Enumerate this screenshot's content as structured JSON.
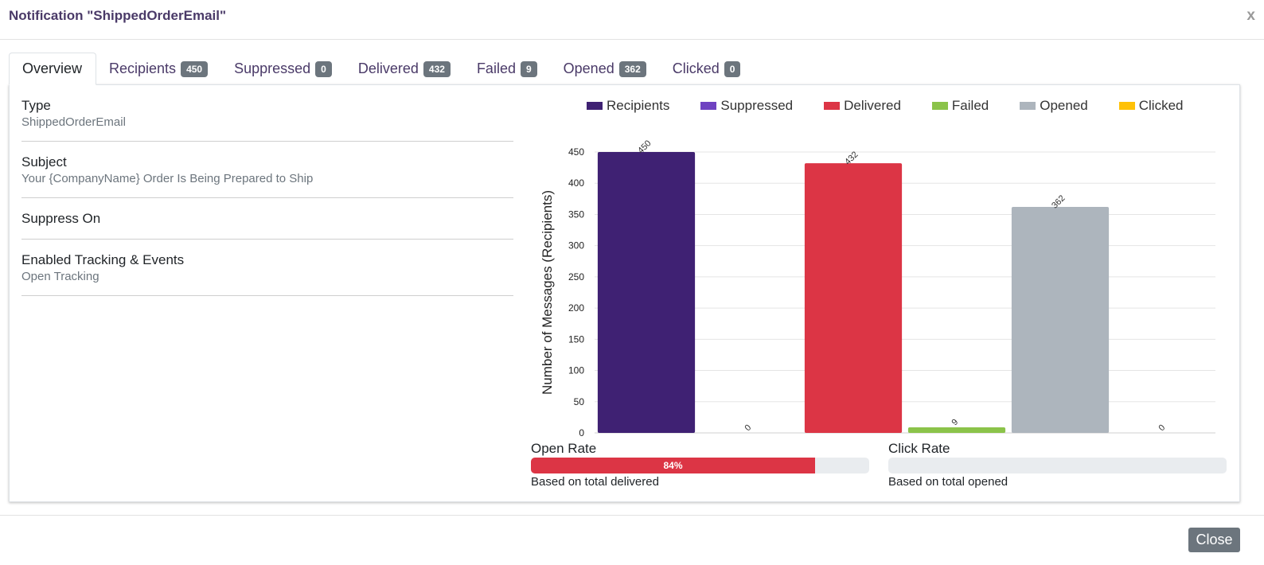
{
  "modal": {
    "title": "Notification \"ShippedOrderEmail\"",
    "close_icon": "x",
    "close_button": "Close"
  },
  "tabs": [
    {
      "label": "Overview",
      "badge": null
    },
    {
      "label": "Recipients",
      "badge": "450"
    },
    {
      "label": "Suppressed",
      "badge": "0"
    },
    {
      "label": "Delivered",
      "badge": "432"
    },
    {
      "label": "Failed",
      "badge": "9"
    },
    {
      "label": "Opened",
      "badge": "362"
    },
    {
      "label": "Clicked",
      "badge": "0"
    }
  ],
  "overview": {
    "fields": [
      {
        "label": "Type",
        "value": "ShippedOrderEmail"
      },
      {
        "label": "Subject",
        "value": "Your {CompanyName} Order Is Being Prepared to Ship"
      },
      {
        "label": "Suppress On",
        "value": ""
      },
      {
        "label": "Enabled Tracking & Events",
        "value": "Open Tracking"
      }
    ]
  },
  "chart_data": {
    "type": "bar",
    "ylabel": "Number of Messages (Recipients)",
    "ylim": [
      0,
      450
    ],
    "yticks": [
      0,
      50,
      100,
      150,
      200,
      250,
      300,
      350,
      400,
      450
    ],
    "series": [
      {
        "name": "Recipients",
        "value": 450,
        "color": "#3f2173"
      },
      {
        "name": "Suppressed",
        "value": 0,
        "color": "#6f42c1"
      },
      {
        "name": "Delivered",
        "value": 432,
        "color": "#dc3545"
      },
      {
        "name": "Failed",
        "value": 9,
        "color": "#8bc34a"
      },
      {
        "name": "Opened",
        "value": 362,
        "color": "#adb5bd"
      },
      {
        "name": "Clicked",
        "value": 0,
        "color": "#ffc107"
      }
    ]
  },
  "rates": {
    "open": {
      "label": "Open Rate",
      "percent": 84,
      "text": "84%",
      "note": "Based on total delivered"
    },
    "click": {
      "label": "Click Rate",
      "percent": 0,
      "text": "",
      "note": "Based on total opened"
    }
  }
}
